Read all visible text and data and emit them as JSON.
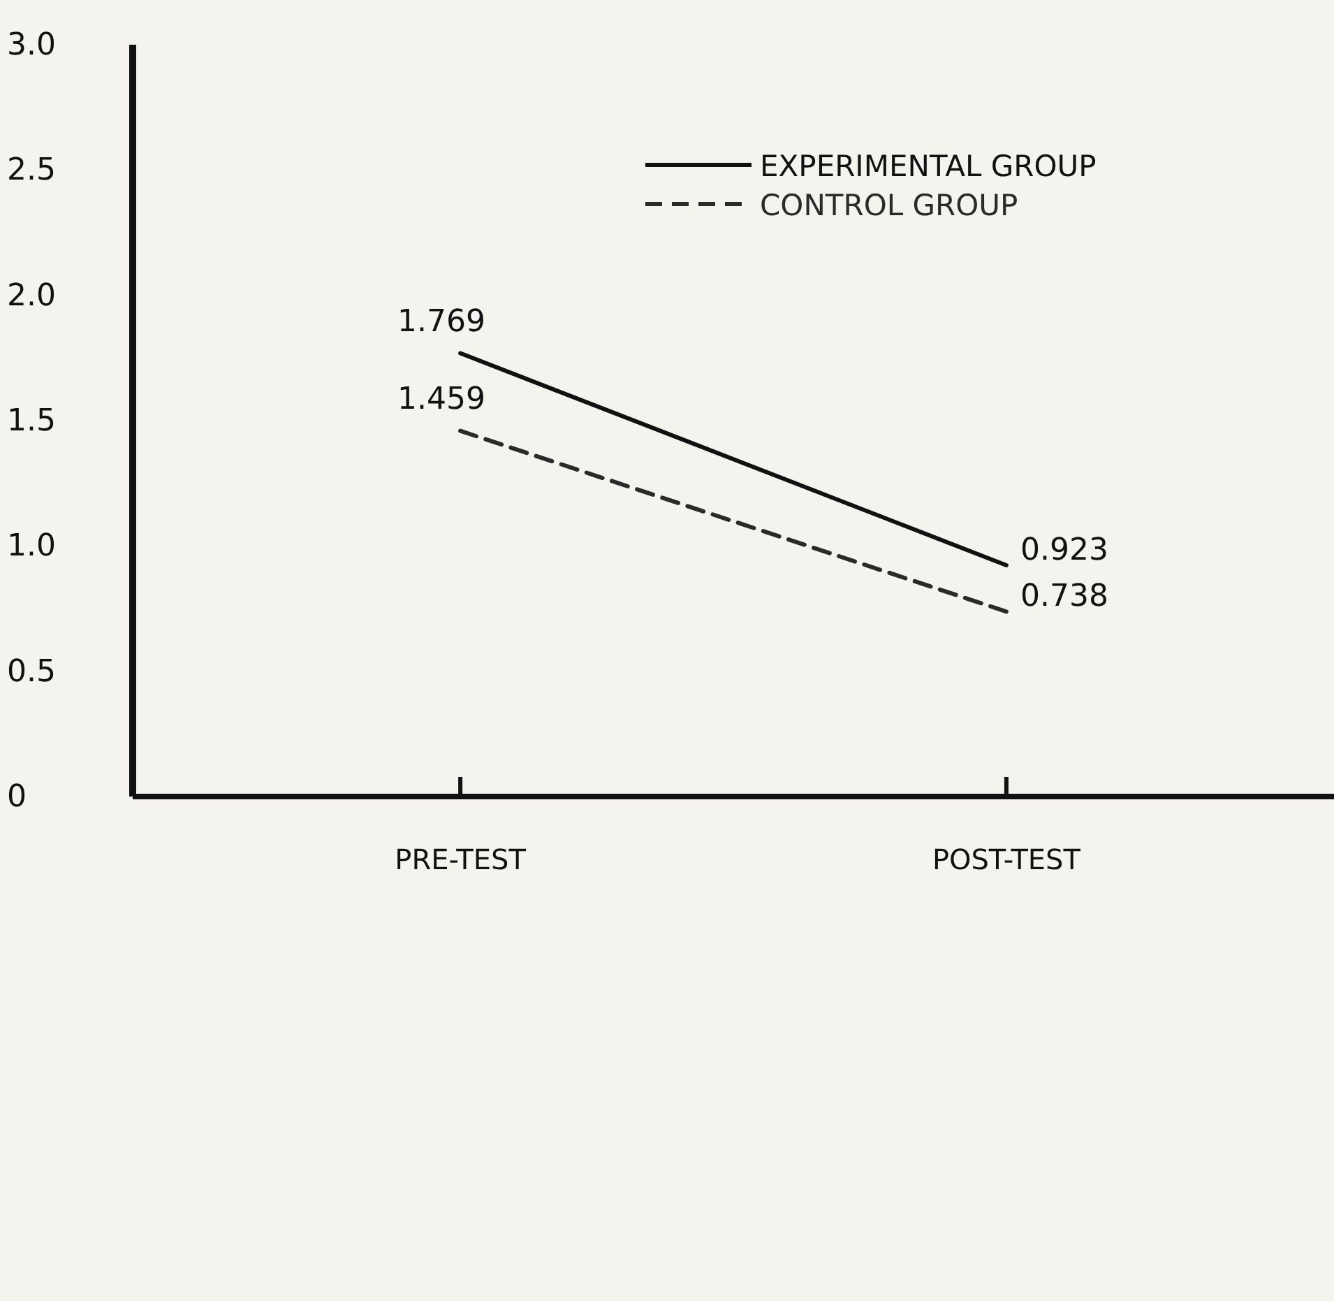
{
  "chart_data": {
    "type": "line",
    "categories": [
      "PRE-TEST",
      "POST-TEST"
    ],
    "series": [
      {
        "name": "EXPERIMENTAL GROUP",
        "color": "#111111",
        "values": [
          1.769,
          0.923
        ],
        "line_style": "solid"
      },
      {
        "name": "CONTROL GROUP",
        "color": "#2a2a2a",
        "values": [
          1.459,
          0.738
        ],
        "line_style": "dashed"
      }
    ],
    "ylim": [
      0,
      3
    ],
    "yticks": [
      {
        "value": 0,
        "label": "0"
      },
      {
        "value": 0.5,
        "label": "0.5"
      },
      {
        "value": 1,
        "label": "1.0"
      },
      {
        "value": 1.5,
        "label": "1.5"
      },
      {
        "value": 2,
        "label": "2.0"
      },
      {
        "value": 2.5,
        "label": "2.5"
      },
      {
        "value": 3,
        "label": "3.0"
      }
    ],
    "data_labels": true,
    "grid": false,
    "legend": "top right",
    "marker": "none"
  }
}
